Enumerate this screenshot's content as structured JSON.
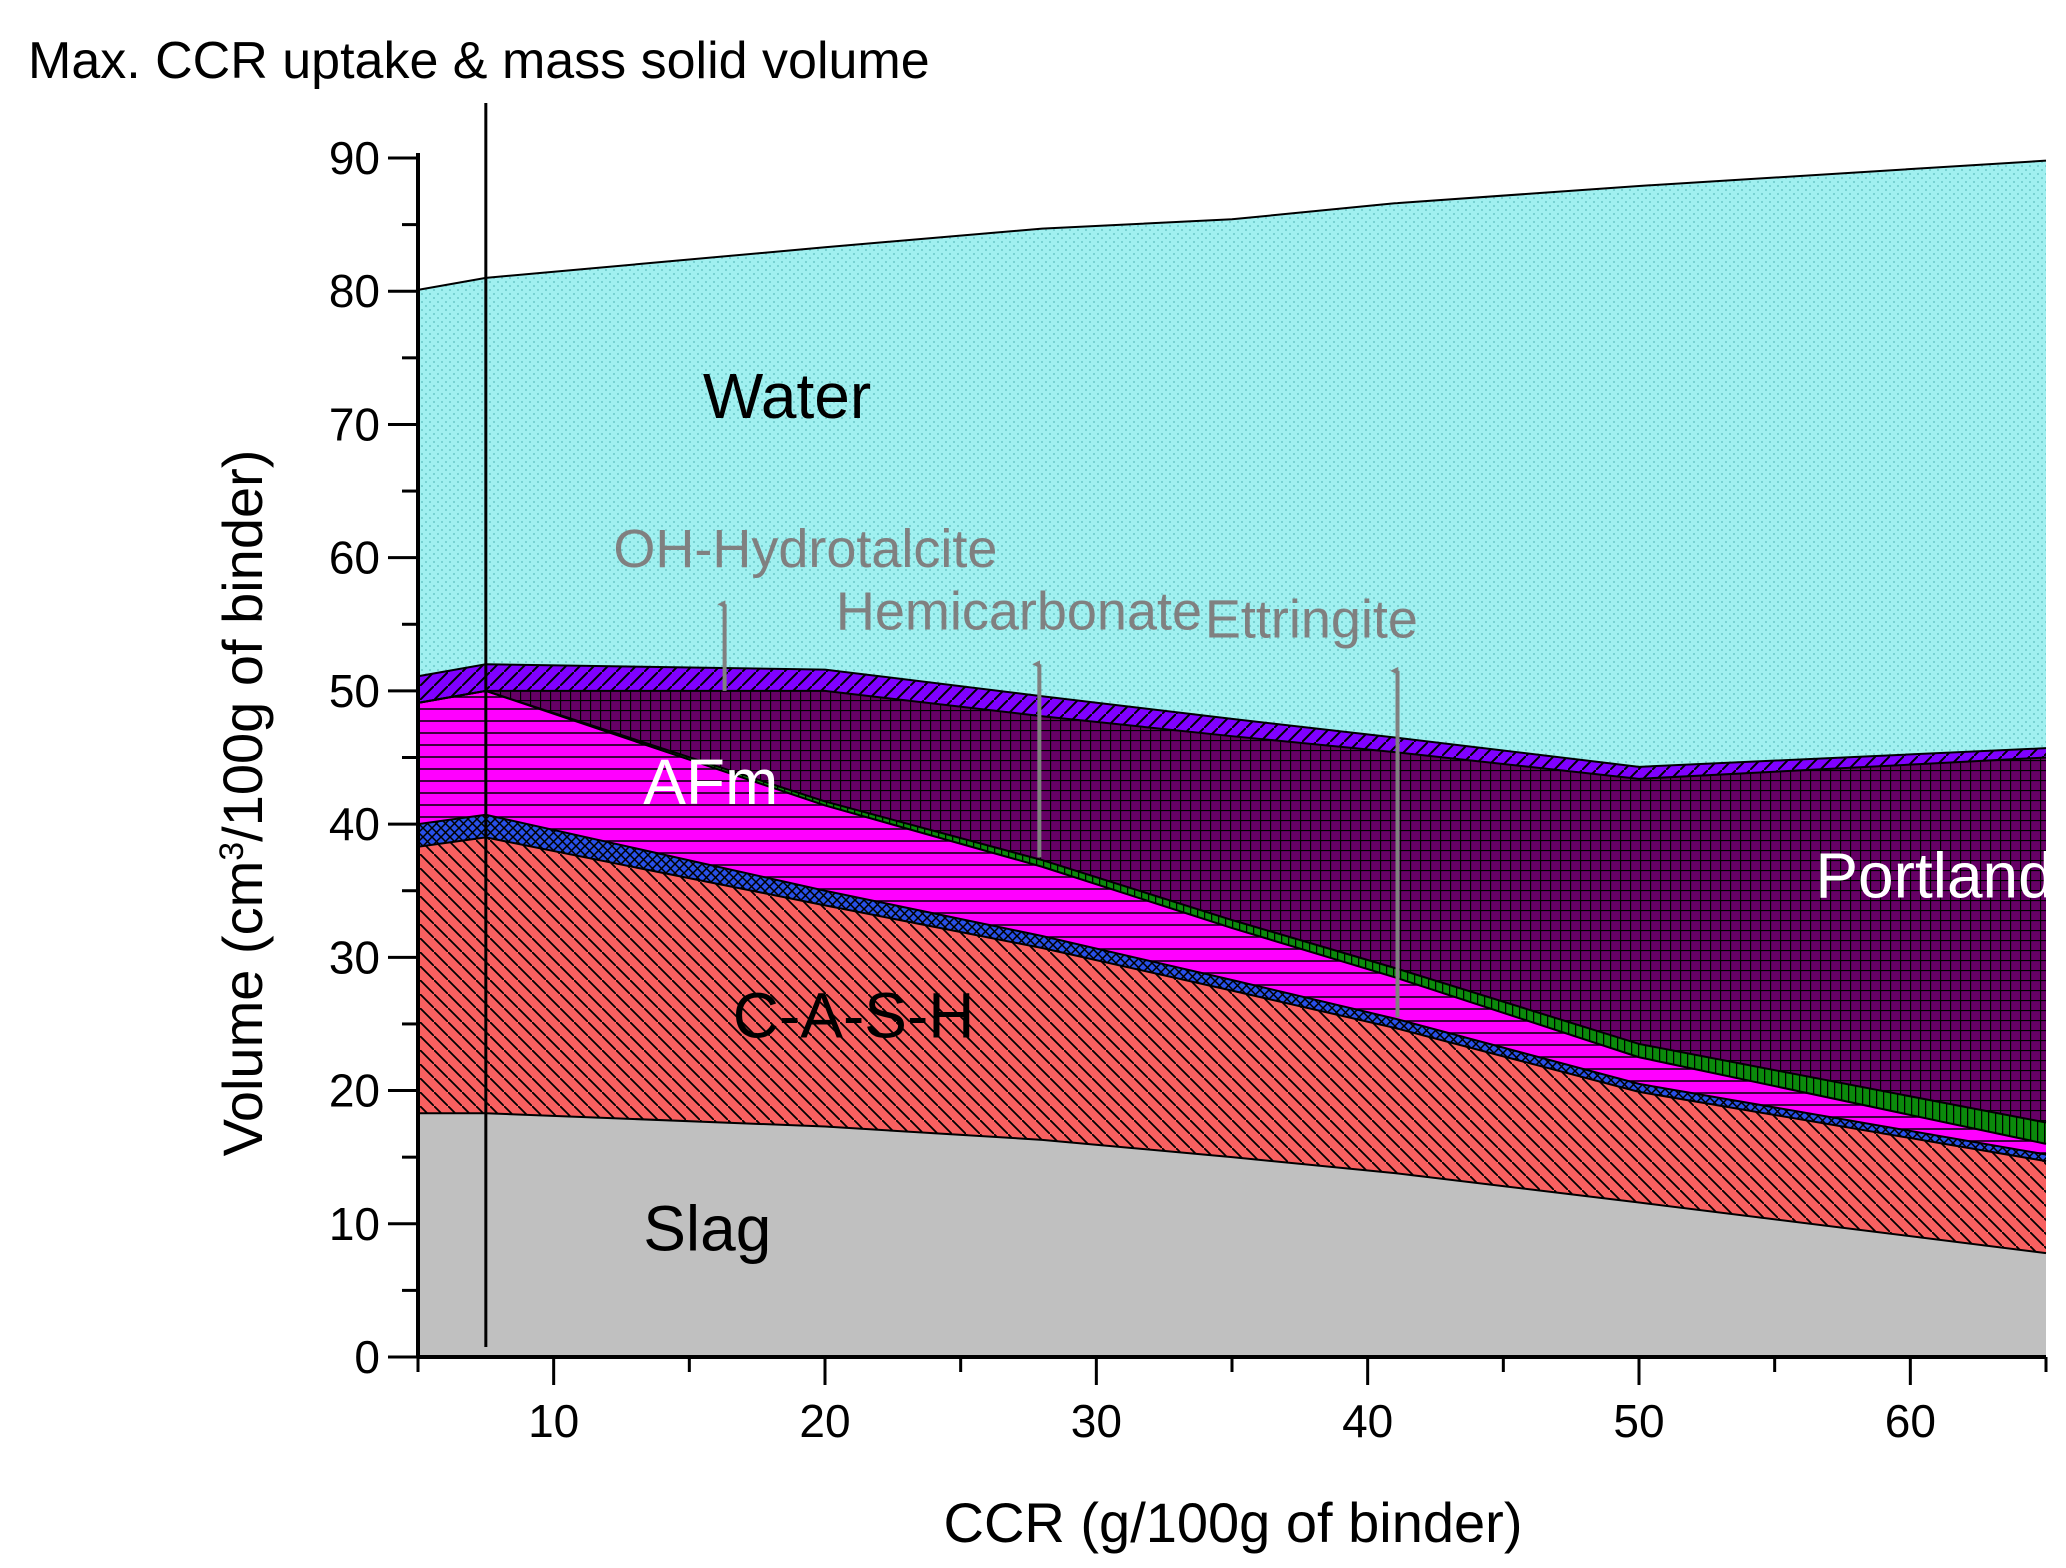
{
  "chart_data": {
    "type": "area",
    "stacked": true,
    "title": "Max. CCR uptake & mass solid volume",
    "xlabel": "CCR (g/100g of binder)",
    "ylabel_main": "Volume (cm",
    "ylabel_sup": "3",
    "ylabel_tail": "/100g of binder)",
    "xlim": [
      5,
      65
    ],
    "ylim": [
      0,
      90
    ],
    "x_ticks": [
      10,
      20,
      30,
      40,
      50,
      60
    ],
    "y_ticks": [
      0,
      10,
      20,
      30,
      40,
      50,
      60,
      70,
      80,
      90
    ],
    "max_uptake_line_x": 7.5,
    "x": [
      5,
      7.5,
      20,
      28,
      35,
      41,
      50,
      65
    ],
    "series": [
      {
        "name": "Slag",
        "color": "#c0c0c0",
        "pattern": "solid",
        "values": [
          18.3,
          18.3,
          17.3,
          16.3,
          15.0,
          13.8,
          11.6,
          7.8
        ]
      },
      {
        "name": "C-A-S-H",
        "color": "#f86060",
        "pattern": "diag-back",
        "values": [
          20.0,
          20.7,
          16.6,
          14.4,
          12.5,
          10.9,
          8.3,
          6.9
        ]
      },
      {
        "name": "Hydrotalcite",
        "color": "#2850e8",
        "pattern": "cross",
        "values": [
          1.7,
          1.7,
          1.1,
          0.9,
          0.8,
          0.7,
          0.6,
          0.5
        ]
      },
      {
        "name": "AFm",
        "color": "#ff00ff",
        "pattern": "horizontal",
        "values": [
          9.1,
          9.3,
          6.4,
          5.2,
          3.9,
          3.1,
          2.0,
          0.8
        ]
      },
      {
        "name": "Hemicarbonate",
        "color": "#0b8a0b",
        "pattern": "vertical",
        "values": [
          0.0,
          0.0,
          0.3,
          0.5,
          0.6,
          0.7,
          1.0,
          1.6
        ]
      },
      {
        "name": "Portlandite",
        "color": "#660066",
        "pattern": "grid",
        "values": [
          0.0,
          0.0,
          8.3,
          10.8,
          13.8,
          16.2,
          19.9,
          27.4
        ]
      },
      {
        "name": "Ettringite",
        "color": "#8000ff",
        "pattern": "diag-fwd",
        "values": [
          2.0,
          2.0,
          1.6,
          1.5,
          1.3,
          1.1,
          0.9,
          0.7
        ]
      },
      {
        "name": "Water",
        "color": "#a0f0f0",
        "pattern": "dots",
        "values": [
          29.0,
          29.0,
          31.7,
          35.1,
          37.5,
          40.1,
          43.6,
          44.1
        ]
      }
    ],
    "region_labels": [
      {
        "name": "label-water",
        "text": "Water",
        "x": 15.5,
        "y": 70.5,
        "color": "#000000",
        "size": 64
      },
      {
        "name": "label-afm",
        "text": "AFm",
        "x": 13.3,
        "y": 41.5,
        "color": "#ffffff",
        "size": 64
      },
      {
        "name": "label-cash",
        "text": "C-A-S-H",
        "x": 16.6,
        "y": 24.0,
        "color": "#000000",
        "size": 64
      },
      {
        "name": "label-slag",
        "text": "Slag",
        "x": 13.3,
        "y": 8.0,
        "color": "#000000",
        "size": 64
      },
      {
        "name": "label-portlandite",
        "text": "Portlandite",
        "x": 56.5,
        "y": 34.5,
        "color": "#ffffff",
        "size": 64
      }
    ],
    "arrow_labels": [
      {
        "name": "label-oh-hydrotalcite",
        "text": "OH-Hydrotalcite",
        "x": 12.2,
        "y": 59.3,
        "x1": 16.3,
        "y1": 50.0,
        "y2": 56.5
      },
      {
        "name": "label-hemicarbonate",
        "text": "Hemicarbonate",
        "x": 20.4,
        "y": 54.6,
        "x1": 27.9,
        "y1": 37.5,
        "y2": 52.0
      },
      {
        "name": "label-ettringite",
        "text": "Ettringite",
        "x": 34.0,
        "y": 54.0,
        "x1": 41.1,
        "y1": 25.5,
        "y2": 51.5
      }
    ]
  }
}
